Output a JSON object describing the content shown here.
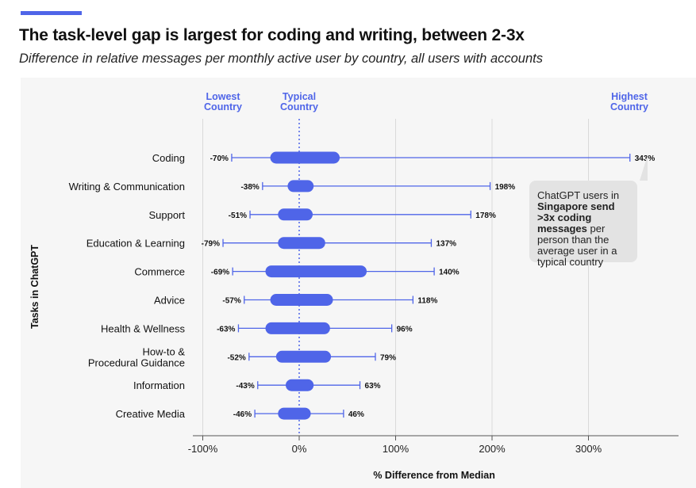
{
  "header": {
    "title": "The task-level gap is largest for coding and writing, between 2-3x",
    "subtitle": "Difference in relative messages per monthly active user by country, all users with accounts"
  },
  "callout": {
    "line1": "ChatGPT users in",
    "bold": "Singapore send >3x coding messages",
    "line2": "per person than the average user in a typical country"
  },
  "colors": {
    "accent": "#4f65e8",
    "grid": "#d9d9d9",
    "axis": "#555555",
    "callout_bg": "#e3e3e3"
  },
  "chart_data": {
    "type": "range",
    "xlabel": "% Difference from Median",
    "ylabel": "Tasks in ChatGPT",
    "xlim": [
      -100,
      350
    ],
    "x_ticks": [
      -100,
      0,
      100,
      200,
      300
    ],
    "x_tick_labels": [
      "-100%",
      "0%",
      "100%",
      "200%",
      "300%"
    ],
    "grid": true,
    "column_headers": {
      "lowest": [
        "Lowest",
        "Country"
      ],
      "typical": [
        "Typical",
        "Country"
      ],
      "highest": [
        "Highest",
        "Country"
      ]
    },
    "categories": [
      {
        "label": [
          "Coding"
        ],
        "min": -70,
        "max": 343,
        "min_label": "-70%",
        "max_label": "343%",
        "iqr": [
          -30,
          42
        ]
      },
      {
        "label": [
          "Writing & Communication"
        ],
        "min": -38,
        "max": 198,
        "min_label": "-38%",
        "max_label": "198%",
        "iqr": [
          -12,
          15
        ]
      },
      {
        "label": [
          "Support"
        ],
        "min": -51,
        "max": 178,
        "min_label": "-51%",
        "max_label": "178%",
        "iqr": [
          -22,
          14
        ]
      },
      {
        "label": [
          "Education & Learning"
        ],
        "min": -79,
        "max": 137,
        "min_label": "-79%",
        "max_label": "137%",
        "iqr": [
          -22,
          27
        ]
      },
      {
        "label": [
          "Commerce"
        ],
        "min": -69,
        "max": 140,
        "min_label": "-69%",
        "max_label": "140%",
        "iqr": [
          -35,
          70
        ]
      },
      {
        "label": [
          "Advice"
        ],
        "min": -57,
        "max": 118,
        "min_label": "-57%",
        "max_label": "118%",
        "iqr": [
          -30,
          35
        ]
      },
      {
        "label": [
          "Health & Wellness"
        ],
        "min": -63,
        "max": 96,
        "min_label": "-63%",
        "max_label": "96%",
        "iqr": [
          -35,
          32
        ]
      },
      {
        "label": [
          "How-to &",
          "Procedural Guidance"
        ],
        "min": -52,
        "max": 79,
        "min_label": "-52%",
        "max_label": "79%",
        "iqr": [
          -24,
          33
        ]
      },
      {
        "label": [
          "Information"
        ],
        "min": -43,
        "max": 63,
        "min_label": "-43%",
        "max_label": "63%",
        "iqr": [
          -14,
          15
        ]
      },
      {
        "label": [
          "Creative Media"
        ],
        "min": -46,
        "max": 46,
        "min_label": "-46%",
        "max_label": "46%",
        "iqr": [
          -22,
          12
        ]
      }
    ]
  }
}
